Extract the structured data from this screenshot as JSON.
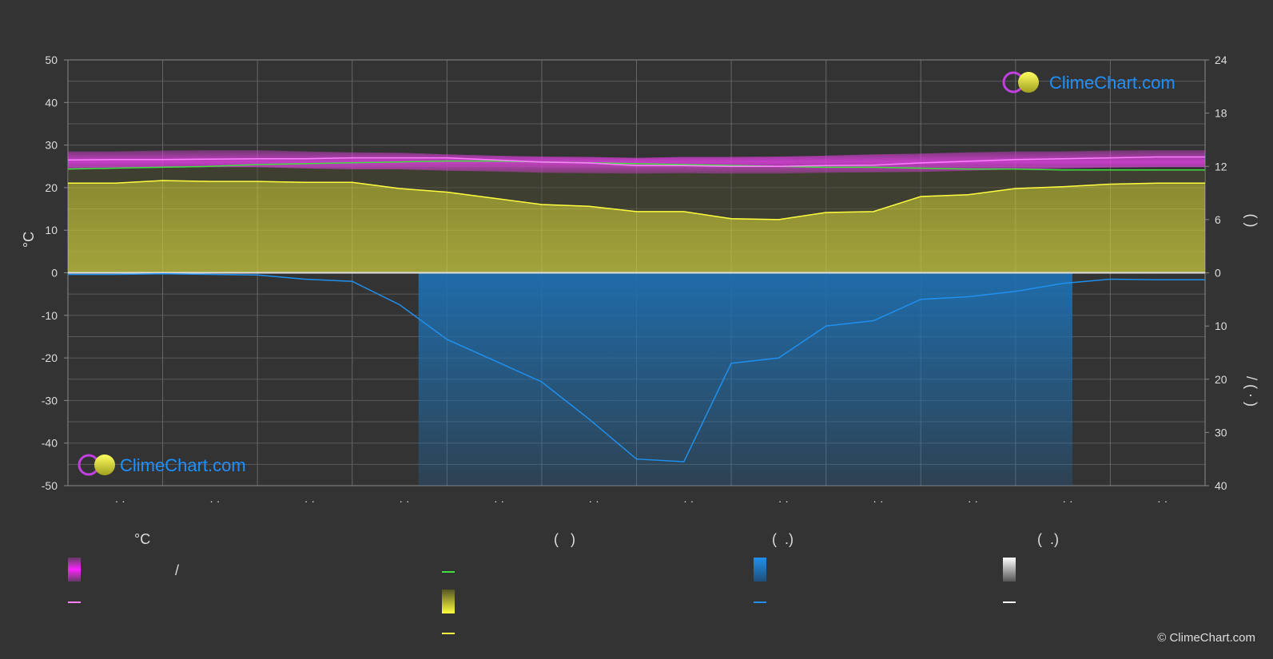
{
  "site": {
    "logo_text": "ClimeChart.com",
    "copyright": "© ClimeChart.com"
  },
  "colors": {
    "background": "#333333",
    "temp_band": "#e040e0",
    "mean_temp": "#ff80ff",
    "daylight": "#40e040",
    "sunshine_band": "#d0d030",
    "sunshine_line": "#ffff40",
    "rain_band": "#1e6fb0",
    "rain_line": "#2090ee",
    "snow": "#ffffff"
  },
  "legend": {
    "col1_head": "°C",
    "col1_slash": "/",
    "col2_head": "(   )",
    "col3_head": "(  .)",
    "col4_head": "(  .)"
  },
  "chart_data": {
    "type": "line",
    "months": [
      "· ·",
      "· ·",
      "· ·",
      "· ·",
      "· ·",
      "· ·",
      "· ·",
      "· ·",
      "· ·",
      "· ·",
      "· ·",
      "· ·"
    ],
    "left_axis": {
      "label": "°C",
      "range": [
        -50,
        50
      ],
      "ticks": [
        "50",
        "40",
        "30",
        "20",
        "10",
        "0",
        "-10",
        "-20",
        "-30",
        "-40",
        "-50"
      ]
    },
    "right_axis_top": {
      "label": "(   )",
      "range": [
        0,
        24
      ],
      "ticks": [
        "24",
        "18",
        "12",
        "6",
        "0"
      ]
    },
    "right_axis_bottom": {
      "label": "/   ( · )",
      "range": [
        0,
        40
      ],
      "ticks": [
        "10",
        "20",
        "30",
        "40"
      ]
    },
    "x": [
      0,
      0.5,
      1,
      1.5,
      2,
      2.5,
      3,
      3.5,
      4,
      4.5,
      5,
      5.5,
      6,
      6.5,
      7,
      7.5,
      8,
      8.5,
      9,
      9.5,
      10,
      10.5,
      11,
      11.5,
      12
    ],
    "series": [
      {
        "key": "temp_max",
        "values": [
          28.5,
          28.5,
          28.7,
          28.8,
          28.8,
          28.5,
          28.3,
          28.2,
          27.8,
          27.5,
          27.3,
          27.2,
          27.0,
          27.2,
          27.2,
          27.3,
          27.5,
          27.8,
          28.0,
          28.3,
          28.5,
          28.5,
          28.7,
          28.8,
          28.8
        ]
      },
      {
        "key": "temp_min",
        "values": [
          24.5,
          24.5,
          24.7,
          24.8,
          24.8,
          24.5,
          24.3,
          24.3,
          24.0,
          23.8,
          23.5,
          23.4,
          23.3,
          23.4,
          23.3,
          23.3,
          23.5,
          23.6,
          23.7,
          24.0,
          24.3,
          24.5,
          24.7,
          24.8,
          24.8
        ]
      },
      {
        "key": "temp_mean",
        "values": [
          26.5,
          26.6,
          26.6,
          26.7,
          26.8,
          26.8,
          27.0,
          27.0,
          27.0,
          26.5,
          26.0,
          25.8,
          25.2,
          25.2,
          25.0,
          25.0,
          25.2,
          25.3,
          25.8,
          26.2,
          26.6,
          26.8,
          27.0,
          27.2,
          27.2
        ]
      },
      {
        "key": "daylight_hours",
        "values": [
          11.7,
          11.8,
          11.9,
          12.0,
          12.2,
          12.3,
          12.4,
          12.5,
          12.6,
          12.6,
          12.5,
          12.4,
          12.3,
          12.2,
          12.1,
          12.0,
          11.9,
          11.9,
          11.8,
          11.7,
          11.7,
          11.6,
          11.6,
          11.6,
          11.6
        ]
      },
      {
        "key": "sunshine_hours",
        "values": [
          10.1,
          10.1,
          10.4,
          10.3,
          10.3,
          10.2,
          10.2,
          9.5,
          9.1,
          8.4,
          7.7,
          7.5,
          6.9,
          6.9,
          6.1,
          6.0,
          6.8,
          6.9,
          8.6,
          8.8,
          9.5,
          9.7,
          10.0,
          10.1,
          10.1
        ]
      },
      {
        "key": "precip_mm_day",
        "values": [
          0.3,
          0.3,
          0.2,
          0.3,
          0.4,
          1.2,
          1.6,
          6.0,
          12.5,
          16.5,
          20.5,
          27.5,
          35.0,
          35.5,
          17.0,
          16.0,
          10.0,
          9.0,
          5.0,
          4.5,
          3.5,
          2.0,
          1.2,
          1.3,
          1.3
        ]
      }
    ]
  }
}
